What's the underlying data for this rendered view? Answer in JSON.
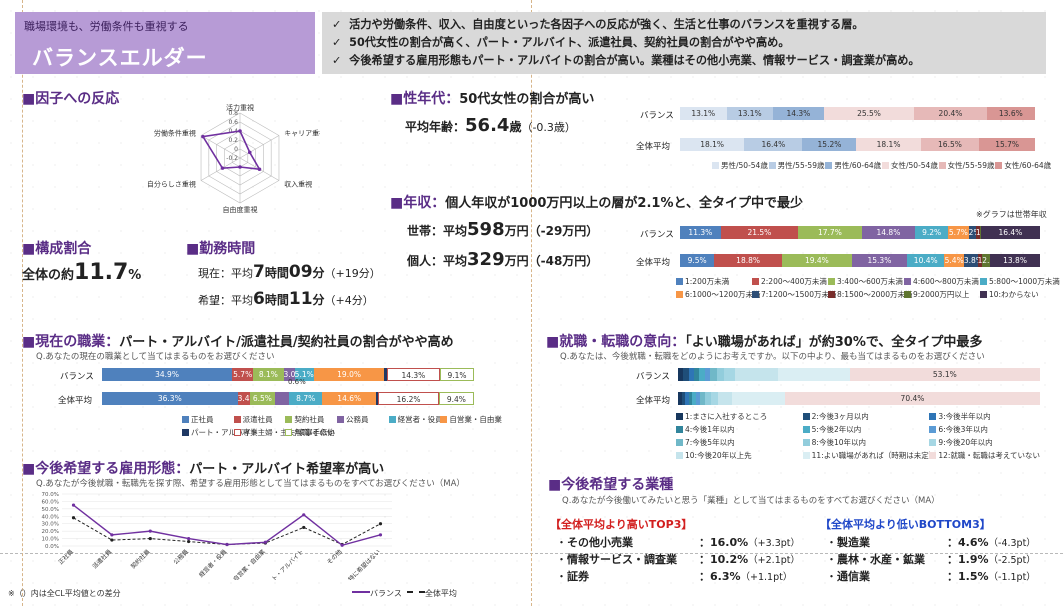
{
  "header": {
    "subtitle": "職場環境も、労働条件も重視する",
    "title": "バランスエルダー",
    "bullets": [
      "活力や労働条件、収入、自由度といった各因子への反応が強く、生活と仕事のバランスを重視する層。",
      "50代女性の割合が高く、パート・アルバイト、派遣社員、契約社員の割合がやや高め。",
      "今後希望する雇用形態もパート・アルバイトの割合が高い。業種はその他小売業、情報サービス・調査業が高め。"
    ],
    "check": "✓"
  },
  "factor": {
    "heading": "■因子への反応",
    "axes": [
      "活力重視",
      "キャリア重視",
      "収入重視",
      "自由度重視",
      "自分らしさ重視",
      "労働条件重視"
    ],
    "ticks": [
      "0.8",
      "0.6",
      "0.4",
      "0.2",
      "0",
      "-0.2"
    ],
    "values": [
      0.4,
      0.05,
      0.3,
      0.0,
      0.25,
      0.75
    ]
  },
  "age": {
    "heading": "■性年代：",
    "headline": "50代女性の割合が高い",
    "avg_label": "平均年齢：",
    "avg_value": "56.4",
    "avg_unit": "歳",
    "avg_diff": "（-0.3歳）",
    "rows": [
      {
        "label": "バランス",
        "values": [
          "13.1%",
          "13.1%",
          "14.3%",
          "25.5%",
          "20.4%",
          "13.6%"
        ],
        "widths": [
          13.1,
          13.1,
          14.3,
          25.5,
          20.4,
          13.6
        ]
      },
      {
        "label": "全体平均",
        "values": [
          "18.1%",
          "16.4%",
          "15.2%",
          "18.1%",
          "16.5%",
          "15.7%"
        ],
        "widths": [
          18.1,
          16.4,
          15.2,
          18.1,
          16.5,
          15.7
        ]
      }
    ],
    "legend": [
      "男性/50-54歳",
      "男性/55-59歳",
      "男性/60-64歳",
      "女性/50-54歳",
      "女性/55-59歳",
      "女性/60-64歳"
    ],
    "colors": [
      "#dbe5f1",
      "#b8cce4",
      "#95b3d7",
      "#f2dcdb",
      "#e6b9b8",
      "#d99694"
    ]
  },
  "income": {
    "heading": "■年収：",
    "headline": "個人年収が1000万円以上の層が2.1%と、全タイプ中で最少",
    "note": "※グラフは世帯年収",
    "house_label": "世帯：平均",
    "house_value": "598",
    "house_unit": "万円",
    "house_diff": "（-29万円）",
    "ind_label": "個人：平均",
    "ind_value": "329",
    "ind_unit": "万円",
    "ind_diff": "（-48万円）",
    "rows": [
      {
        "label": "バランス",
        "values": [
          "11.3%",
          "21.5%",
          "17.7%",
          "14.8%",
          "9.2%",
          "5.7%",
          "2%",
          "1.2%",
          "",
          "16.4%"
        ],
        "widths": [
          11.3,
          21.5,
          17.7,
          14.8,
          9.2,
          5.7,
          2,
          1.2,
          0.2,
          16.4
        ]
      },
      {
        "label": "全体平均",
        "values": [
          "9.5%",
          "18.8%",
          "19.4%",
          "15.3%",
          "10.4%",
          "5.4%",
          "3.8%",
          "1.3%",
          "2.2%",
          "13.8%"
        ],
        "widths": [
          9.5,
          18.8,
          19.4,
          15.3,
          10.4,
          5.4,
          3.8,
          1.3,
          2.2,
          13.8
        ]
      }
    ],
    "legend": [
      "1:200万未満",
      "2:200〜400万未満",
      "3:400〜600万未満",
      "4:600〜800万未満",
      "5:800〜1000万未満",
      "6:1000〜1200万未満",
      "7:1200〜1500万未満",
      "8:1500〜2000万未満",
      "9:2000万円以上",
      "10:わからない"
    ],
    "colors": [
      "#4f81bd",
      "#c0504d",
      "#9bbb59",
      "#8064a2",
      "#4bacc6",
      "#f79646",
      "#2c4d75",
      "#772c2a",
      "#5f7530",
      "#403152"
    ]
  },
  "composition": {
    "heading": "■構成割合",
    "prefix": "全体の約",
    "value": "11.7",
    "unit": "%"
  },
  "work_hours": {
    "heading": "■勤務時間",
    "current_label": "現在：平均",
    "current_h": "7",
    "current_h_unit": "時間",
    "current_m": "09",
    "current_m_unit": "分",
    "current_diff": "（+19分）",
    "hope_label": "希望：平均",
    "hope_h": "6",
    "hope_h_unit": "時間",
    "hope_m": "11",
    "hope_m_unit": "分",
    "hope_diff": "（+4分）"
  },
  "job": {
    "heading": "■現在の職業：",
    "headline": "パート・アルバイト/派遣社員/契約社員の割合がやや高め",
    "question": "Q.あなたの現在の職業として当てはまるものをお選びください",
    "rows": [
      {
        "label": "バランス",
        "values": [
          "34.9%",
          "5.7%",
          "8.1%",
          "3.0%",
          "5.1%",
          "19.0%",
          "",
          "14.3%",
          "9.1%"
        ],
        "widths": [
          34.9,
          5.7,
          8.1,
          3.0,
          5.1,
          19.0,
          0.6,
          14.3,
          9.1
        ]
      },
      {
        "label": "全体平均",
        "values": [
          "36.3%",
          "3.4%",
          "6.5%",
          "",
          "8.7%",
          "14.6%",
          "",
          "16.2%",
          "9.4%"
        ],
        "widths": [
          36.3,
          3.4,
          6.5,
          4.0,
          8.7,
          14.6,
          0.5,
          16.2,
          9.4
        ]
      }
    ],
    "extra_label": "0.6%",
    "legend": [
      "正社員",
      "派遣社員",
      "契約社員",
      "公務員",
      "経営者・役員",
      "自営業・自由業",
      "パート・アルバイト",
      "専業主婦・主夫/家事手伝い",
      "無職/その他"
    ],
    "colors": [
      "#4f81bd",
      "#c0504d",
      "#9bbb59",
      "#8064a2",
      "#4bacc6",
      "#f79646",
      "#1f3864",
      "#ffffff",
      "#ffffff"
    ]
  },
  "employment": {
    "heading": "■今後希望する雇用形態：",
    "headline": "パート・アルバイト希望率が高い",
    "question": "Q.あなたが今後就職・転職先を探す際、希望する雇用形態として当てはまるものをすべてお選びください（MA）",
    "yticks": [
      "70.0%",
      "60.0%",
      "50.0%",
      "40.0%",
      "30.0%",
      "20.0%",
      "10.0%",
      "0.0%"
    ],
    "categories": [
      "正社員",
      "派遣社員",
      "契約社員",
      "公務員",
      "経営者・役員",
      "自営業・自由業",
      "パート・アルバイト",
      "その他",
      "特に希望はない"
    ],
    "balance": [
      55,
      15,
      20,
      10,
      2,
      5,
      42,
      1,
      15
    ],
    "average": [
      38,
      8,
      10,
      6,
      2,
      4,
      25,
      2,
      30
    ],
    "legend_balance": "バランス",
    "legend_average": "全体平均"
  },
  "intention": {
    "heading": "■就職・転職の意向：",
    "headline": "「よい職場があれば」が約30%で、全タイプ中最多",
    "question": "Q.あなたは、今後就職・転職をどのようにお考えですか。以下の中より、最も当てはまるものをお選びください",
    "rows": [
      {
        "label": "バランス",
        "big_label": "53.1%",
        "widths": [
          1.5,
          1.5,
          1.5,
          1.5,
          1.5,
          1.5,
          2,
          2,
          3,
          12,
          20,
          53.1
        ]
      },
      {
        "label": "全体平均",
        "big_label": "70.4%",
        "widths": [
          1,
          1,
          1,
          1,
          1,
          1,
          1.5,
          1.5,
          2,
          4,
          14.6,
          70.4
        ]
      }
    ],
    "legend": [
      "1:まさに入社するところ",
      "2:今後3ヶ月以内",
      "3:今後半年以内",
      "4:今後1年以内",
      "5:今後2年以内",
      "6:今後3年以内",
      "7:今後5年以内",
      "8:今後10年以内",
      "9:今後20年以内",
      "10:今後20年以上先",
      "11:よい職場があれば（時期は未定）",
      "12:就職・転職は考えていない"
    ],
    "colors": [
      "#17375e",
      "#1f4e79",
      "#2e75b6",
      "#31859c",
      "#4bacc6",
      "#5b9bd5",
      "#70b8c8",
      "#92cddc",
      "#a6d7e4",
      "#c5e4ec",
      "#daeef3",
      "#f2dcdb"
    ]
  },
  "industry": {
    "heading": "■今後希望する業種",
    "question": "Q.あなたが今後働いてみたいと思う「業種」として当てはまるものをすべてお選びください（MA）",
    "top_title": "【全体平均より高いTOP3】",
    "bottom_title": "【全体平均より低いBOTTOM3】",
    "top": [
      {
        "name": "その他小売業",
        "value": "：16.0%",
        "diff": "（+3.3pt）"
      },
      {
        "name": "情報サービス・調査業",
        "value": "：10.2%",
        "diff": "（+2.1pt）"
      },
      {
        "name": "証券",
        "value": "：6.3%",
        "diff": "（+1.1pt）"
      }
    ],
    "bottom": [
      {
        "name": "製造業",
        "value": "：4.6%",
        "diff": "（-4.3pt）"
      },
      {
        "name": "農林・水産・鉱業",
        "value": "：1.9%",
        "diff": "（-2.5pt）"
      },
      {
        "name": "通信業",
        "value": "：1.5%",
        "diff": "（-1.1pt）"
      }
    ],
    "bullet": "・"
  },
  "footnote": "※（）内は全CL平均値との差分"
}
